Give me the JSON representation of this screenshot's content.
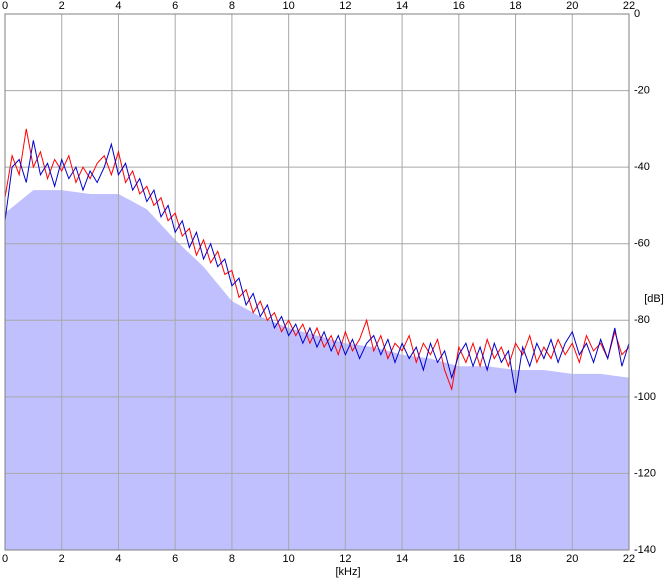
{
  "chart_data": {
    "type": "line",
    "x_label": "[kHz]",
    "y_label": "[dB]",
    "xlim": [
      0,
      22
    ],
    "ylim": [
      -140,
      0
    ],
    "xticks": [
      0,
      2,
      4,
      6,
      8,
      10,
      12,
      14,
      16,
      18,
      20,
      22
    ],
    "yticks": [
      -140,
      -120,
      -100,
      -80,
      -60,
      -40,
      -20,
      0
    ],
    "grid": true,
    "x": [
      0,
      0.25,
      0.5,
      0.75,
      1,
      1.25,
      1.5,
      1.75,
      2,
      2.25,
      2.5,
      2.75,
      3,
      3.25,
      3.5,
      3.75,
      4,
      4.25,
      4.5,
      4.75,
      5,
      5.25,
      5.5,
      5.75,
      6,
      6.25,
      6.5,
      6.75,
      7,
      7.25,
      7.5,
      7.75,
      8,
      8.25,
      8.5,
      8.75,
      9,
      9.25,
      9.5,
      9.75,
      10,
      10.25,
      10.5,
      10.75,
      11,
      11.25,
      11.5,
      11.75,
      12,
      12.25,
      12.5,
      12.75,
      13,
      13.25,
      13.5,
      13.75,
      14,
      14.25,
      14.5,
      14.75,
      15,
      15.25,
      15.5,
      15.75,
      16,
      16.25,
      16.5,
      16.75,
      17,
      17.25,
      17.5,
      17.75,
      18,
      18.25,
      18.5,
      18.75,
      19,
      19.25,
      19.5,
      19.75,
      20,
      20.25,
      20.5,
      20.75,
      21,
      21.25,
      21.5,
      21.75,
      22
    ],
    "series": [
      {
        "type": "area",
        "color": "#c0c0ff",
        "x": [
          0,
          1,
          2,
          3,
          4,
          5,
          6,
          7,
          8,
          9,
          10,
          11,
          12,
          13,
          14,
          15,
          16,
          17,
          18,
          19,
          20,
          21,
          22
        ],
        "values": [
          -52,
          -46,
          -46,
          -47,
          -47,
          -51,
          -59,
          -66,
          -75,
          -79,
          -82,
          -84,
          -86,
          -87,
          -89,
          -90,
          -92,
          -92,
          -93,
          -93,
          -94,
          -94,
          -95
        ]
      },
      {
        "type": "line",
        "color": "#ff0000",
        "values": [
          -48,
          -37,
          -42,
          -30,
          -40,
          -36,
          -43,
          -38,
          -41,
          -37,
          -44,
          -40,
          -43,
          -39,
          -37,
          -42,
          -36,
          -44,
          -41,
          -47,
          -45,
          -50,
          -48,
          -54,
          -52,
          -58,
          -56,
          -63,
          -59,
          -65,
          -62,
          -68,
          -67,
          -74,
          -72,
          -78,
          -75,
          -80,
          -78,
          -83,
          -80,
          -84,
          -81,
          -86,
          -82,
          -87,
          -84,
          -89,
          -83,
          -88,
          -85,
          -80,
          -88,
          -84,
          -90,
          -86,
          -88,
          -84,
          -91,
          -86,
          -89,
          -85,
          -93,
          -98,
          -87,
          -91,
          -86,
          -92,
          -85,
          -90,
          -87,
          -92,
          -86,
          -89,
          -84,
          -91,
          -87,
          -90,
          -85,
          -89,
          -86,
          -91,
          -84,
          -88,
          -86,
          -90,
          -83,
          -89,
          -87
        ]
      },
      {
        "type": "line",
        "color": "#0000cc",
        "values": [
          -54,
          -40,
          -38,
          -44,
          -33,
          -42,
          -39,
          -45,
          -38,
          -43,
          -40,
          -46,
          -41,
          -44,
          -40,
          -34,
          -42,
          -39,
          -46,
          -43,
          -49,
          -46,
          -53,
          -50,
          -57,
          -54,
          -61,
          -57,
          -64,
          -60,
          -66,
          -64,
          -71,
          -69,
          -76,
          -73,
          -79,
          -76,
          -82,
          -79,
          -84,
          -81,
          -86,
          -82,
          -87,
          -83,
          -88,
          -84,
          -89,
          -85,
          -90,
          -86,
          -84,
          -89,
          -85,
          -91,
          -86,
          -90,
          -87,
          -93,
          -86,
          -91,
          -88,
          -95,
          -89,
          -86,
          -92,
          -87,
          -93,
          -86,
          -91,
          -88,
          -99,
          -87,
          -92,
          -86,
          -90,
          -85,
          -91,
          -86,
          -83,
          -89,
          -86,
          -91,
          -85,
          -90,
          -82,
          -92,
          -86
        ]
      }
    ]
  }
}
